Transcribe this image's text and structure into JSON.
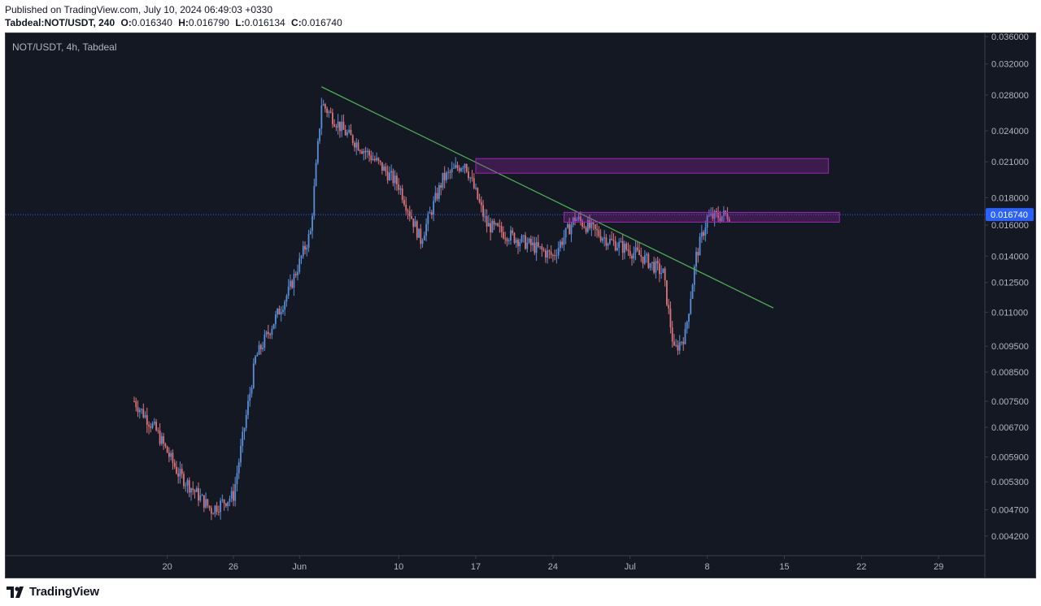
{
  "header": {
    "published": "Published on TradingView.com, July 10, 2024 06:49:03 +0330",
    "symbol": "Tabdeal:NOT/USDT, 240",
    "ohlc": [
      {
        "label": "O:",
        "value": "0.016340"
      },
      {
        "label": "H:",
        "value": "0.016790"
      },
      {
        "label": "L:",
        "value": "0.016134"
      },
      {
        "label": "C:",
        "value": "0.016740"
      }
    ]
  },
  "chart": {
    "legend": "NOT/USDT, 4h, Tabdeal",
    "price_ticks": [
      "0.036000",
      "0.032000",
      "0.028000",
      "0.024000",
      "0.021000",
      "0.018000",
      "0.016000",
      "0.014000",
      "0.012500",
      "0.011000",
      "0.009500",
      "0.008500",
      "0.007500",
      "0.006700",
      "0.005900",
      "0.005300",
      "0.004700",
      "0.004200"
    ],
    "date_ticks": [
      "20",
      "26",
      "Jun",
      "10",
      "17",
      "24",
      "Jul",
      "8",
      "15",
      "22",
      "29"
    ],
    "current_price": "0.016740",
    "current_price_color": "#2962ff",
    "up_color": "#5b8fd8",
    "down_color": "#d9757a",
    "trendline_color": "#4caf50",
    "zone_color": "#9c27b0"
  },
  "chart_data": {
    "type": "candlestick",
    "symbol": "NOT/USDT",
    "exchange": "Tabdeal",
    "interval": "4h",
    "price_scale": "log",
    "ylim": [
      0.0039,
      0.036
    ],
    "x_ticks": [
      "20",
      "26",
      "Jun",
      "10",
      "17",
      "24",
      "Jul",
      "8",
      "15",
      "22",
      "29"
    ],
    "y_ticks": [
      0.036,
      0.032,
      0.028,
      0.024,
      0.021,
      0.018,
      0.016,
      0.014,
      0.0125,
      0.011,
      0.0095,
      0.0085,
      0.0075,
      0.0067,
      0.0059,
      0.0053,
      0.0047,
      0.0042
    ],
    "last_close": 0.01674,
    "approx_close_path": [
      {
        "date": "May 17",
        "close": 0.0075
      },
      {
        "date": "May 19",
        "close": 0.0066
      },
      {
        "date": "May 21",
        "close": 0.0055
      },
      {
        "date": "May 24",
        "close": 0.0047
      },
      {
        "date": "May 26",
        "close": 0.005
      },
      {
        "date": "May 28",
        "close": 0.009
      },
      {
        "date": "May 31",
        "close": 0.012
      },
      {
        "date": "Jun 2",
        "close": 0.0155
      },
      {
        "date": "Jun 3",
        "close": 0.027
      },
      {
        "date": "Jun 5",
        "close": 0.024
      },
      {
        "date": "Jun 8",
        "close": 0.021
      },
      {
        "date": "Jun 10",
        "close": 0.019
      },
      {
        "date": "Jun 12",
        "close": 0.015
      },
      {
        "date": "Jun 14",
        "close": 0.0195
      },
      {
        "date": "Jun 16",
        "close": 0.021
      },
      {
        "date": "Jun 18",
        "close": 0.016
      },
      {
        "date": "Jun 21",
        "close": 0.015
      },
      {
        "date": "Jun 24",
        "close": 0.014
      },
      {
        "date": "Jun 26",
        "close": 0.0165
      },
      {
        "date": "Jun 29",
        "close": 0.015
      },
      {
        "date": "Jul 2",
        "close": 0.014
      },
      {
        "date": "Jul 4",
        "close": 0.013
      },
      {
        "date": "Jul 5",
        "close": 0.0093
      },
      {
        "date": "Jul 6",
        "close": 0.01
      },
      {
        "date": "Jul 7",
        "close": 0.014
      },
      {
        "date": "Jul 8",
        "close": 0.0165
      },
      {
        "date": "Jul 10",
        "close": 0.01674
      }
    ],
    "drawings": [
      {
        "type": "trendline",
        "from": {
          "date": "Jun 3",
          "price": 0.029
        },
        "to": {
          "date": "Jul 14",
          "price": 0.0112
        }
      },
      {
        "type": "zone",
        "from_date": "Jun 17",
        "to_date": "Jul 19",
        "top": 0.0213,
        "bottom": 0.02
      },
      {
        "type": "zone",
        "from_date": "Jun 25",
        "to_date": "Jul 20",
        "top": 0.0169,
        "bottom": 0.0162
      }
    ]
  },
  "footer": {
    "brand": "TradingView"
  }
}
